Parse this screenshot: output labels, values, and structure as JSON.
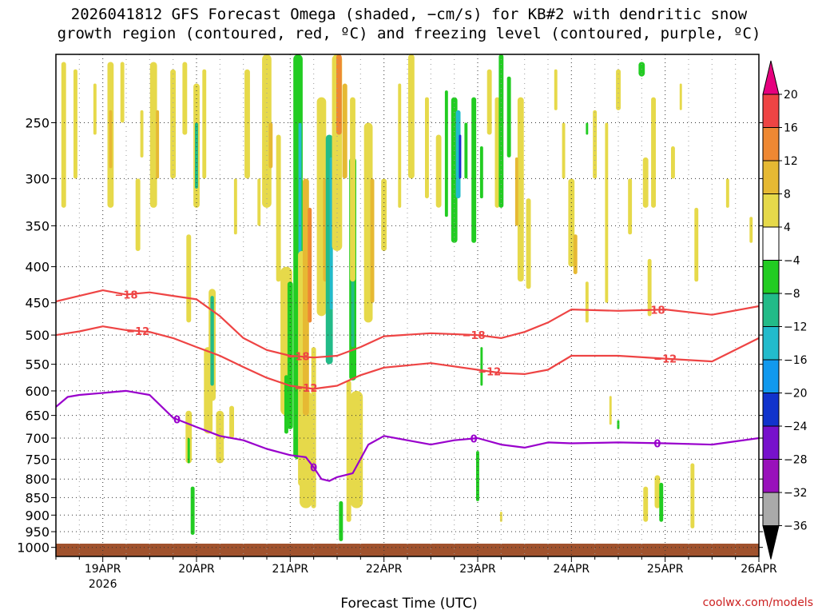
{
  "title_line1": "2026041812 GFS Forecast Omega (shaded, −cm/s) for KB#2 with dendritic snow",
  "title_line2": "growth region (contoured, red, ºC) and freezing level (contoured, purple, ºC)",
  "x_axis_title": "Forecast Time (UTC)",
  "credit": "coolwx.com/models",
  "colors": {
    "dgz_contour": "#ee4444",
    "freezing_contour": "#9900cc",
    "ground": "#a0522d"
  },
  "chart_data": {
    "type": "heatmap",
    "title": "2026041812 GFS Forecast Omega (shaded, −cm/s) for KB#2 with dendritic snow growth region (contoured, red, ºC) and freezing level (contoured, purple, ºC)",
    "xlabel": "Forecast Time (UTC)",
    "ylabel": "",
    "x_range_hours_since_2026041812": [
      0,
      180
    ],
    "y_ticks_hPa": [
      250,
      300,
      350,
      400,
      450,
      500,
      550,
      600,
      650,
      700,
      750,
      800,
      850,
      900,
      950,
      1000
    ],
    "y_range_hPa": [
      200,
      1030
    ],
    "x_ticks": [
      {
        "hour": 12,
        "label": "19APR",
        "sublabel": "2026"
      },
      {
        "hour": 36,
        "label": "20APR",
        "sublabel": ""
      },
      {
        "hour": 60,
        "label": "21APR",
        "sublabel": ""
      },
      {
        "hour": 84,
        "label": "22APR",
        "sublabel": ""
      },
      {
        "hour": 108,
        "label": "23APR",
        "sublabel": ""
      },
      {
        "hour": 132,
        "label": "24APR",
        "sublabel": ""
      },
      {
        "hour": 156,
        "label": "25APR",
        "sublabel": ""
      },
      {
        "hour": 180,
        "label": "26APR",
        "sublabel": ""
      }
    ],
    "colorbar": {
      "labels": [
        "20",
        "16",
        "12",
        "8",
        "4",
        "−4",
        "−8",
        "−12",
        "−16",
        "−20",
        "−24",
        "−28",
        "−32",
        "−36"
      ],
      "bins": [
        {
          "label": "> 20",
          "color": "#e6007e"
        },
        {
          "label": "16 to 20",
          "color": "#ee4444"
        },
        {
          "label": "12 to 16",
          "color": "#ee8833"
        },
        {
          "label": "8 to 12",
          "color": "#e6b933"
        },
        {
          "label": "4 to 8",
          "color": "#e6d94a"
        },
        {
          "label": "−4 to 4",
          "color": "#ffffff"
        },
        {
          "label": "−8 to −4",
          "color": "#22cc22"
        },
        {
          "label": "−12 to −8",
          "color": "#22bb88"
        },
        {
          "label": "−16 to −12",
          "color": "#22bbcc"
        },
        {
          "label": "−20 to −16",
          "color": "#1199ee"
        },
        {
          "label": "−24 to −20",
          "color": "#1133cc"
        },
        {
          "label": "−28 to −24",
          "color": "#7711cc"
        },
        {
          "label": "−32 to −28",
          "color": "#9911bb"
        },
        {
          "label": "−36 to −32",
          "color": "#aaaaaa"
        },
        {
          "label": "< −36",
          "color": "#000000"
        }
      ]
    },
    "series": [
      {
        "name": "−18",
        "color": "#ee4444",
        "x": [
          0,
          6,
          12,
          18,
          24,
          30,
          36,
          42,
          48,
          54,
          60,
          66,
          72,
          78,
          84,
          96,
          108,
          114,
          120,
          126,
          132,
          144,
          156,
          168,
          180
        ],
        "y": [
          448,
          440,
          432,
          438,
          435,
          440,
          445,
          470,
          505,
          525,
          535,
          538,
          535,
          520,
          502,
          497,
          500,
          505,
          495,
          480,
          460,
          462,
          460,
          468,
          455
        ],
        "labels_at_hours": [
          18,
          62,
          107,
          153
        ]
      },
      {
        "name": "−12",
        "color": "#ee4444",
        "x": [
          0,
          6,
          12,
          18,
          24,
          30,
          36,
          42,
          48,
          54,
          60,
          66,
          72,
          78,
          84,
          96,
          108,
          114,
          120,
          126,
          132,
          144,
          156,
          168,
          180
        ],
        "y": [
          500,
          494,
          486,
          492,
          495,
          505,
          520,
          535,
          555,
          575,
          590,
          596,
          590,
          570,
          556,
          548,
          560,
          566,
          568,
          560,
          535,
          535,
          540,
          545,
          505
        ],
        "labels_at_hours": [
          21,
          64,
          111,
          156
        ]
      },
      {
        "name": "0",
        "color": "#9900cc",
        "x": [
          0,
          3,
          6,
          12,
          18,
          24,
          30,
          36,
          42,
          48,
          54,
          60,
          64,
          66,
          68,
          70,
          72,
          76,
          80,
          84,
          90,
          96,
          102,
          108,
          114,
          120,
          126,
          132,
          144,
          156,
          168,
          180
        ],
        "y": [
          632,
          612,
          608,
          604,
          600,
          608,
          655,
          675,
          695,
          705,
          725,
          740,
          745,
          770,
          800,
          805,
          795,
          785,
          715,
          695,
          705,
          715,
          705,
          700,
          715,
          722,
          710,
          712,
          710,
          712,
          715,
          700
        ],
        "labels_at_hours": [
          31,
          66,
          107,
          154
        ]
      }
    ]
  }
}
